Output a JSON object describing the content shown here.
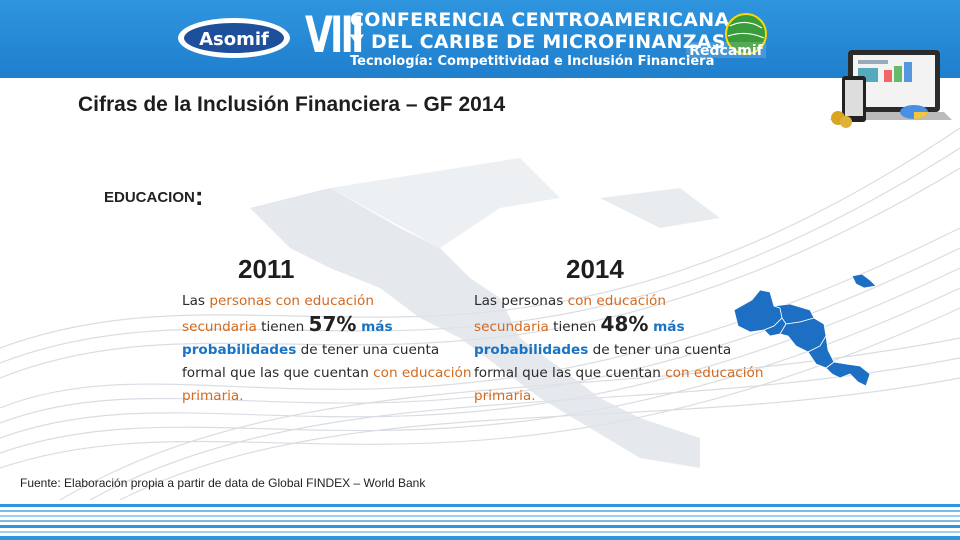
{
  "header": {
    "roman": "VIII",
    "line1": "CONFERENCIA CENTROAMERICANA",
    "line2": "Y DEL CARIBE DE MICROFINANZAS",
    "line3": "Tecnología: Competitividad e Inclusión Financiera",
    "logo_left_text": "Asomif",
    "logo_right_text": "Redcamif",
    "colors": {
      "header_bg": "#1f7fcd",
      "accent_orange": "#d2691e",
      "accent_blue": "#1a73c2"
    }
  },
  "slide": {
    "title": "Cifras de la Inclusión Financiera – GF 2014",
    "section_label": "EDUCACION",
    "section_colon": ":"
  },
  "col2011": {
    "year": "2011",
    "t1": "Las ",
    "t2": "personas con educación",
    "t3": "secundaria",
    "t4": " tienen ",
    "pct": "57%",
    "t5": " más",
    "t6": "probabilidades",
    "t7": " de tener una cuenta formal que las que cuentan ",
    "t8": "con educación primaria."
  },
  "col2014": {
    "year": "2014",
    "t1": "Las personas ",
    "t2": "con educación",
    "t3": "secundaria",
    "t4": " tienen ",
    "pct": "48%",
    "t5": " más",
    "t6": "probabilidades",
    "t7": " de tener una cuenta formal que las que cuentan ",
    "t8": "con educación primaria."
  },
  "footer": {
    "source": "Fuente: Elaboración propia a partir de data de Global FINDEX – World Bank"
  }
}
